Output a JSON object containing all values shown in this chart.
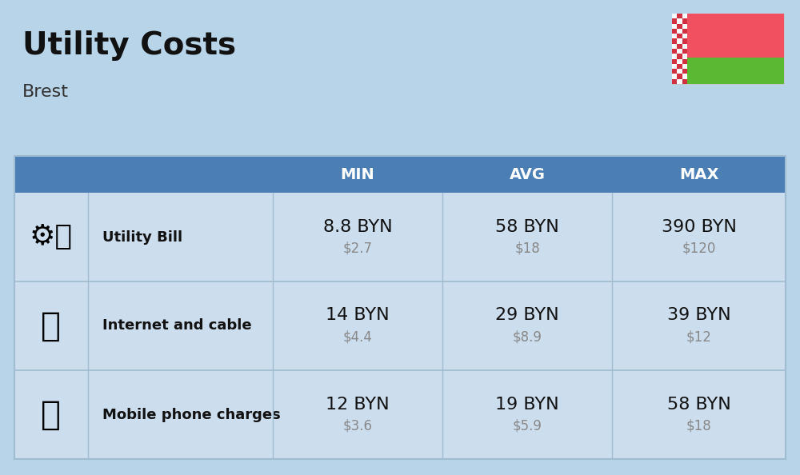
{
  "title": "Utility Costs",
  "subtitle": "Brest",
  "background_color": "#b8d4e8",
  "header_bg_color": "#4a7eb5",
  "header_text_color": "#ffffff",
  "row_bg_color": "#ccdded",
  "icon_col_bg": "#ccdded",
  "col_headers": [
    "MIN",
    "AVG",
    "MAX"
  ],
  "rows": [
    {
      "label": "Utility Bill",
      "min_byn": "8.8 BYN",
      "min_usd": "$2.7",
      "avg_byn": "58 BYN",
      "avg_usd": "$18",
      "max_byn": "390 BYN",
      "max_usd": "$120"
    },
    {
      "label": "Internet and cable",
      "min_byn": "14 BYN",
      "min_usd": "$4.4",
      "avg_byn": "29 BYN",
      "avg_usd": "$8.9",
      "max_byn": "39 BYN",
      "max_usd": "$12"
    },
    {
      "label": "Mobile phone charges",
      "min_byn": "12 BYN",
      "min_usd": "$3.6",
      "avg_byn": "19 BYN",
      "avg_usd": "$5.9",
      "max_byn": "58 BYN",
      "max_usd": "$18"
    }
  ],
  "flag_red": "#f05060",
  "flag_green": "#5ab832",
  "flag_ornament_red": "#d03040",
  "title_fontsize": 28,
  "subtitle_fontsize": 16,
  "header_fontsize": 14,
  "label_fontsize": 13,
  "value_fontsize": 16,
  "usd_fontsize": 12,
  "usd_color": "#888888",
  "divider_color": "#a0bcd0"
}
